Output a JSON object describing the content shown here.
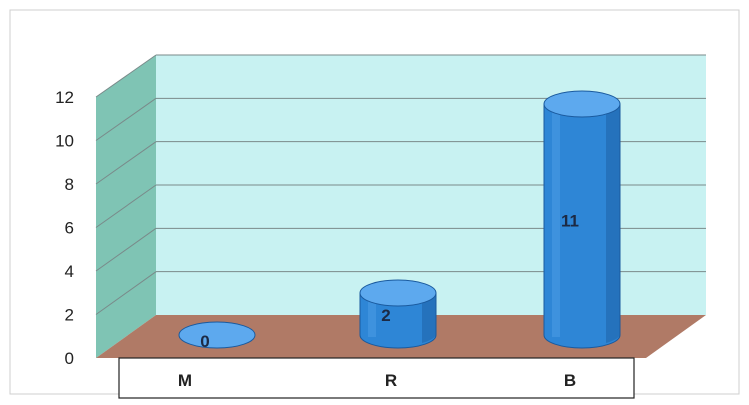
{
  "chart_data": {
    "type": "bar",
    "style": "3d-cylinder",
    "categories": [
      "M",
      "R",
      "B"
    ],
    "values": [
      0,
      2,
      11
    ],
    "data_labels": [
      "0",
      "2",
      "11"
    ],
    "y_ticks": [
      "0",
      "2",
      "4",
      "6",
      "8",
      "10",
      "12"
    ],
    "ylim": [
      0,
      12
    ],
    "grid": true,
    "legend": "none",
    "title": "",
    "xlabel": "",
    "ylabel": "",
    "colors": {
      "bar_fill": "#2E86D6",
      "bar_dark": "#1A5A9E",
      "bar_light": "#5DA9EE",
      "back_wall": "#C8F2F2",
      "side_wall": "#7FC4B4",
      "floor": "#B07A66",
      "gridline": "#7A8A8A",
      "axis_text": "#222222",
      "label_text": "#1C2A44"
    }
  }
}
